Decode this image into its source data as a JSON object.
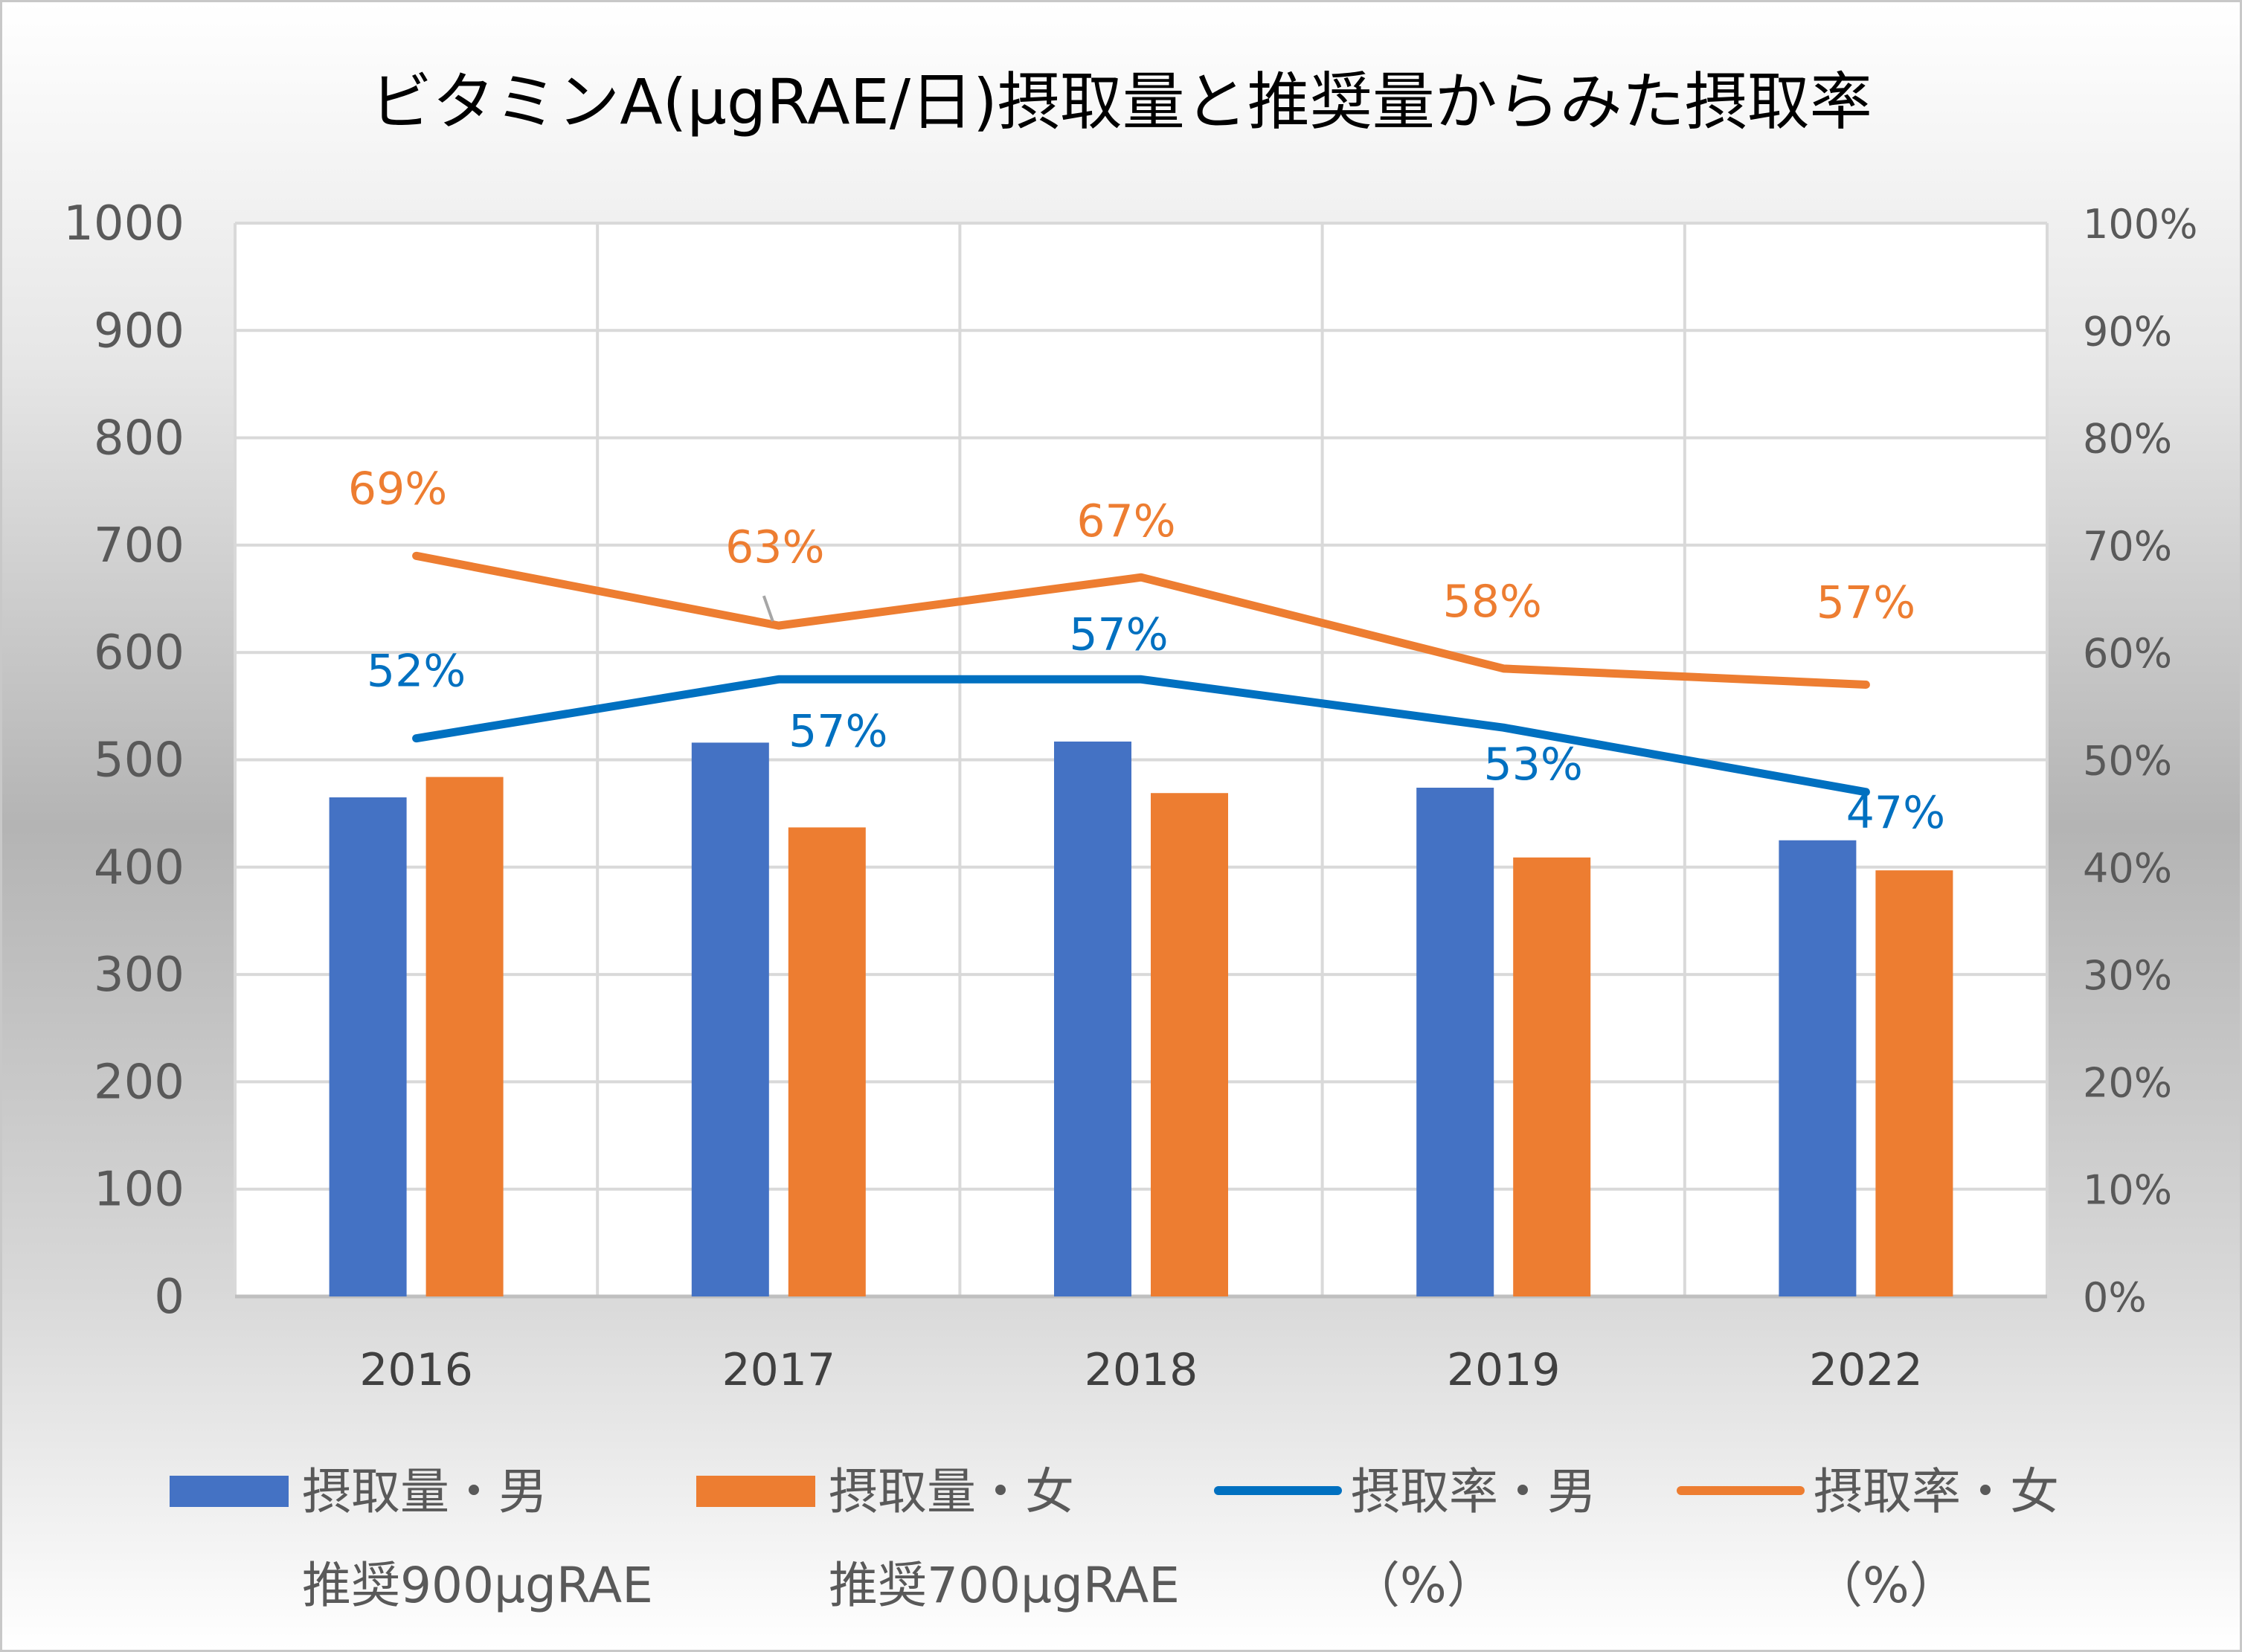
{
  "chart_data": {
    "type": "bar",
    "title": "ビタミンA(μgRAE/日)摂取量と推奨量からみた摂取率",
    "categories": [
      "2016",
      "2017",
      "2018",
      "2019",
      "2022"
    ],
    "y_left": {
      "ylim": [
        0,
        1000
      ],
      "ticks": [
        "0",
        "100",
        "200",
        "300",
        "400",
        "500",
        "600",
        "700",
        "800",
        "900",
        "1000"
      ]
    },
    "y_right": {
      "ylim": [
        0,
        1
      ],
      "ticks": [
        "0%",
        "10%",
        "20%",
        "30%",
        "40%",
        "50%",
        "60%",
        "70%",
        "80%",
        "90%",
        "100%"
      ]
    },
    "grid": true,
    "legend_position": "bottom",
    "series": [
      {
        "name": "摂取量・男",
        "legend_sub": "推奨900μgRAE",
        "kind": "bar",
        "axis": "left",
        "color": "#4472C4",
        "values": [
          465,
          516,
          517,
          474,
          425
        ]
      },
      {
        "name": "摂取量・女",
        "legend_sub": "推奨700μgRAE",
        "kind": "bar",
        "axis": "left",
        "color": "#ED7D31",
        "values": [
          484,
          437,
          469,
          409,
          397
        ]
      },
      {
        "name": "摂取率・男",
        "legend_sub": "（%）",
        "kind": "line",
        "axis": "right",
        "color": "#0070C0",
        "values": [
          0.52,
          0.575,
          0.575,
          0.53,
          0.47
        ],
        "labels": [
          "52%",
          "57%",
          "57%",
          "53%",
          "47%"
        ]
      },
      {
        "name": "摂取率・女",
        "legend_sub": "（%）",
        "kind": "line",
        "axis": "right",
        "color": "#ED7D31",
        "values": [
          0.69,
          0.625,
          0.67,
          0.585,
          0.57
        ],
        "labels": [
          "69%",
          "63%",
          "67%",
          "58%",
          "57%"
        ]
      }
    ]
  }
}
